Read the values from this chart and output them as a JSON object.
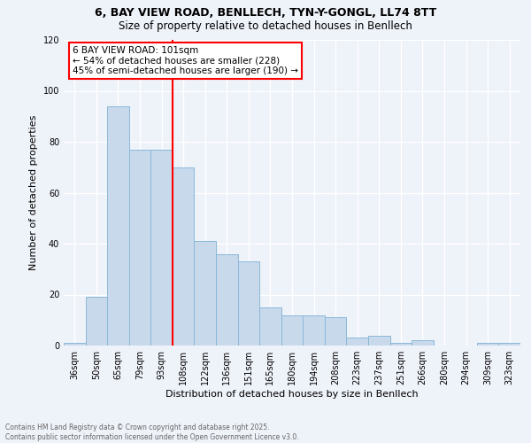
{
  "title1": "6, BAY VIEW ROAD, BENLLECH, TYN-Y-GONGL, LL74 8TT",
  "title2": "Size of property relative to detached houses in Benllech",
  "xlabel": "Distribution of detached houses by size in Benllech",
  "ylabel": "Number of detached properties",
  "categories": [
    "36sqm",
    "50sqm",
    "65sqm",
    "79sqm",
    "93sqm",
    "108sqm",
    "122sqm",
    "136sqm",
    "151sqm",
    "165sqm",
    "180sqm",
    "194sqm",
    "208sqm",
    "223sqm",
    "237sqm",
    "251sqm",
    "266sqm",
    "280sqm",
    "294sqm",
    "309sqm",
    "323sqm"
  ],
  "values": [
    1,
    19,
    94,
    77,
    77,
    70,
    41,
    36,
    33,
    15,
    12,
    12,
    11,
    3,
    4,
    1,
    2,
    0,
    0,
    1,
    1
  ],
  "bar_color": "#c9d9ec",
  "bar_edge_color": "#8ab8d8",
  "vline_color": "red",
  "annotation_text": "6 BAY VIEW ROAD: 101sqm\n← 54% of detached houses are smaller (228)\n45% of semi-detached houses are larger (190) →",
  "annotation_box_color": "white",
  "annotation_box_edge_color": "red",
  "ylim": [
    0,
    120
  ],
  "yticks": [
    0,
    20,
    40,
    60,
    80,
    100,
    120
  ],
  "footer_text": "Contains HM Land Registry data © Crown copyright and database right 2025.\nContains public sector information licensed under the Open Government Licence v3.0.",
  "bg_color": "#eef2f9",
  "grid_color": "white",
  "title_fontsize": 9,
  "subtitle_fontsize": 8.5,
  "ylabel_fontsize": 8,
  "xlabel_fontsize": 8,
  "tick_fontsize": 7,
  "footer_fontsize": 5.5,
  "annotation_fontsize": 7.5
}
